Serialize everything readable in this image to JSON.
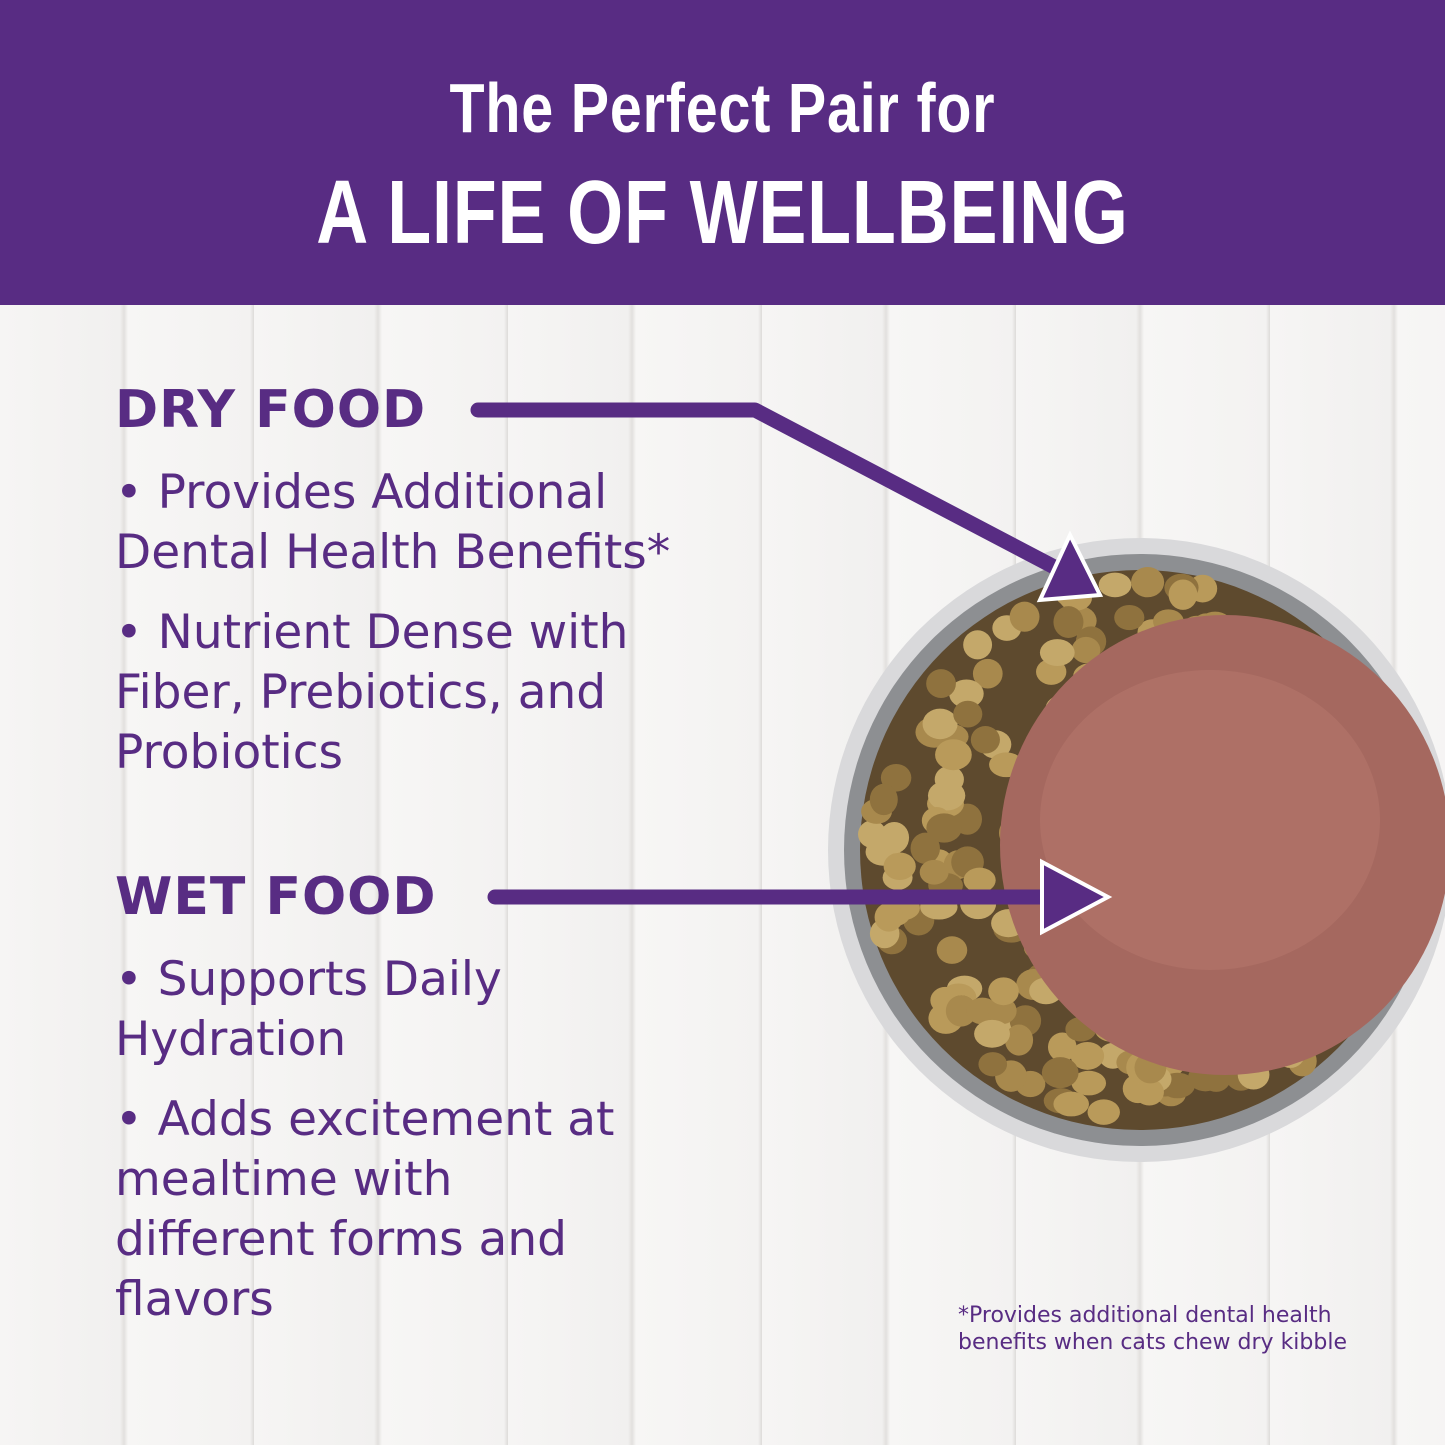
{
  "header": {
    "line1": "The Perfect Pair for",
    "line2": "A LIFE OF WELLBEING"
  },
  "dry": {
    "title": "DRY FOOD",
    "bullets": [
      "• Provides Additional Dental Health Benefits*",
      "• Nutrient Dense with Fiber, Prebiotics, and Probiotics"
    ]
  },
  "wet": {
    "title": "WET FOOD",
    "bullets": [
      "• Supports Daily Hydration",
      "• Adds excitement at mealtime with different forms and flavors"
    ]
  },
  "footnote": "*Provides additional dental health benefits when cats chew dry kibble",
  "colors": {
    "brand_purple": "#582c83",
    "background": "#f3f2f1"
  }
}
